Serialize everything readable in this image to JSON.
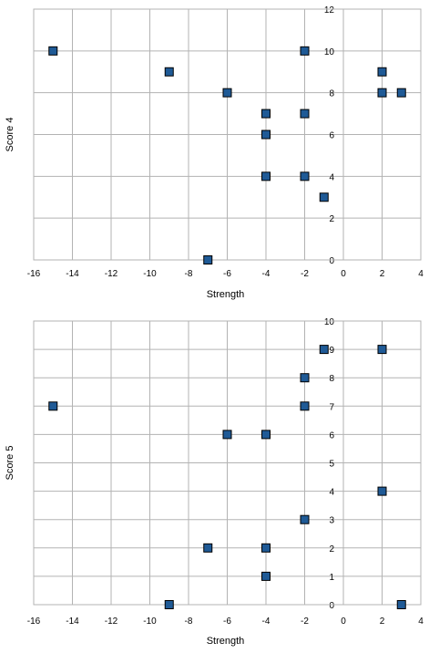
{
  "chart_data": [
    {
      "type": "scatter",
      "xlabel": "Strength",
      "ylabel": "Score 4",
      "xlim": [
        -16,
        4
      ],
      "ylim": [
        0,
        12
      ],
      "xticks": [
        "-16",
        "-14",
        "-12",
        "-10",
        "-8",
        "-6",
        "-4",
        "-2",
        "0",
        "2",
        "4"
      ],
      "yticks": [
        "0",
        "2",
        "4",
        "6",
        "8",
        "10",
        "12"
      ],
      "grid": true,
      "marker_color": "#1F5A96",
      "points": [
        {
          "x": -15,
          "y": 10
        },
        {
          "x": -9,
          "y": 9
        },
        {
          "x": -6,
          "y": 8
        },
        {
          "x": -4,
          "y": 7
        },
        {
          "x": -4,
          "y": 6
        },
        {
          "x": -4,
          "y": 4
        },
        {
          "x": -2,
          "y": 10
        },
        {
          "x": -2,
          "y": 7
        },
        {
          "x": -2,
          "y": 4
        },
        {
          "x": -1,
          "y": 3
        },
        {
          "x": -7,
          "y": 0
        },
        {
          "x": 2,
          "y": 9
        },
        {
          "x": 2,
          "y": 8
        },
        {
          "x": 3,
          "y": 8
        }
      ]
    },
    {
      "type": "scatter",
      "xlabel": "Strength",
      "ylabel": "Score 5",
      "xlim": [
        -16,
        4
      ],
      "ylim": [
        0,
        10
      ],
      "xticks": [
        "-16",
        "-14",
        "-12",
        "-10",
        "-8",
        "-6",
        "-4",
        "-2",
        "0",
        "2",
        "4"
      ],
      "yticks": [
        "0",
        "1",
        "2",
        "3",
        "4",
        "5",
        "6",
        "7",
        "8",
        "9",
        "10"
      ],
      "grid": true,
      "marker_color": "#1F5A96",
      "points": [
        {
          "x": -15,
          "y": 7
        },
        {
          "x": -6,
          "y": 6
        },
        {
          "x": -4,
          "y": 6
        },
        {
          "x": -2,
          "y": 8
        },
        {
          "x": -2,
          "y": 7
        },
        {
          "x": -1,
          "y": 9
        },
        {
          "x": 2,
          "y": 9
        },
        {
          "x": 2,
          "y": 4
        },
        {
          "x": -2,
          "y": 3
        },
        {
          "x": -7,
          "y": 2
        },
        {
          "x": -4,
          "y": 2
        },
        {
          "x": -4,
          "y": 1
        },
        {
          "x": -9,
          "y": 0
        },
        {
          "x": 3,
          "y": 0
        }
      ]
    }
  ]
}
